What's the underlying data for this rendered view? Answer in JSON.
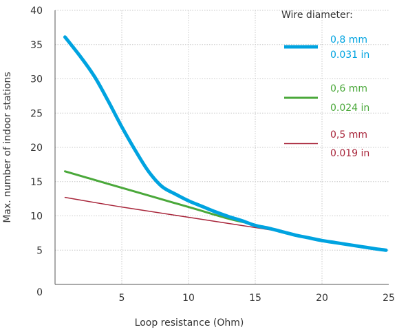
{
  "chart_data": {
    "type": "line",
    "xlabel": "Loop resistance (Ohm)",
    "ylabel": "Max. number of indoor stations",
    "xlim": [
      0,
      25
    ],
    "ylim": [
      0,
      40
    ],
    "xticks": [
      5,
      10,
      15,
      20,
      25
    ],
    "yticks": [
      0,
      5,
      10,
      15,
      20,
      25,
      30,
      35,
      40
    ],
    "grid": "dotted",
    "legend": {
      "title": "Wire diameter:",
      "position": "top-right"
    },
    "series": [
      {
        "name": "0,8 mm",
        "alt_name": "0.031 in",
        "color": "#00a3e0",
        "x": [
          0.75,
          2,
          3,
          4,
          5,
          6,
          7,
          8,
          9,
          10,
          11,
          12,
          13,
          14,
          15,
          16,
          17,
          18,
          19,
          20,
          21,
          22,
          23,
          24,
          24.8
        ],
        "y": [
          36.1,
          33,
          30.2,
          26.7,
          23,
          19.6,
          16.5,
          14.3,
          13.2,
          12.2,
          11.4,
          10.6,
          9.9,
          9.3,
          8.6,
          8.2,
          7.7,
          7.2,
          6.8,
          6.4,
          6.1,
          5.8,
          5.5,
          5.2,
          5.0
        ]
      },
      {
        "name": "0,6 mm",
        "alt_name": "0.024 in",
        "color": "#4aa83a",
        "x": [
          0.75,
          5,
          10,
          13,
          15,
          17
        ],
        "y": [
          16.5,
          14.1,
          11.3,
          9.6,
          8.7,
          7.7
        ]
      },
      {
        "name": "0,5 mm",
        "alt_name": "0.019 in",
        "color": "#a8253a",
        "x": [
          0.75,
          5,
          10,
          17
        ],
        "y": [
          12.7,
          11.3,
          9.8,
          7.7
        ]
      }
    ]
  }
}
